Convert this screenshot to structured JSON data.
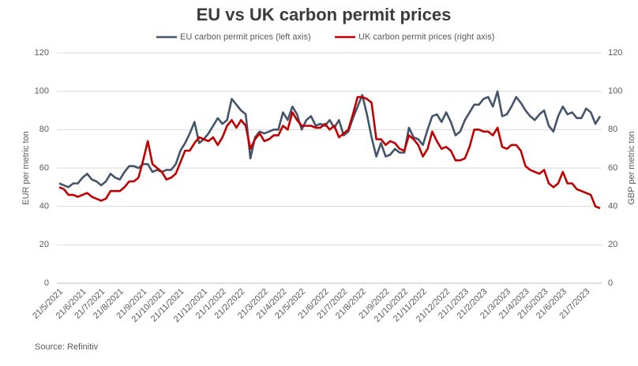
{
  "chart_data": {
    "type": "line",
    "title": "EU vs UK carbon permit prices",
    "source": "Source: Refinitiv",
    "ylabel": "EUR per metric ton",
    "y2label": "GBP per metric ton",
    "ylim": [
      0,
      120
    ],
    "yticks": [
      0,
      20,
      40,
      60,
      80,
      100,
      120
    ],
    "y2lim": [
      0,
      120
    ],
    "y2ticks": [
      0,
      20,
      40,
      60,
      80,
      100,
      120
    ],
    "grid": true,
    "legend": "top",
    "categories": [
      "21/5/2021",
      null,
      null,
      null,
      null,
      "21/6/2021",
      null,
      null,
      null,
      "21/7/2021",
      null,
      null,
      null,
      "21/8/2021",
      null,
      null,
      null,
      null,
      "21/9/2021",
      null,
      null,
      null,
      "21/10/2021",
      null,
      null,
      null,
      "21/11/2021",
      null,
      null,
      null,
      null,
      "21/12/2021",
      null,
      null,
      null,
      "21/1/2022",
      null,
      null,
      null,
      "21/2/2022",
      null,
      null,
      null,
      null,
      "21/3/2022",
      null,
      null,
      null,
      "21/4/2022",
      null,
      null,
      null,
      "21/5/2022",
      null,
      null,
      null,
      null,
      "21/6/2022",
      null,
      null,
      null,
      "21/7/2022",
      null,
      null,
      null,
      "21/8/2022",
      null,
      null,
      null,
      null,
      "21/9/2022",
      null,
      null,
      null,
      "21/10/2022",
      null,
      null,
      null,
      "21/11/2022",
      null,
      null,
      null,
      null,
      "21/12/2022",
      null,
      null,
      null,
      "21/1/2023",
      null,
      null,
      null,
      "21/2/2023",
      null,
      null,
      null,
      null,
      "21/3/2023",
      null,
      null,
      null,
      "21/4/2023",
      null,
      null,
      null,
      "21/5/2023",
      null,
      null,
      null,
      "21/6/2023",
      null,
      null,
      null,
      null,
      "21/7/2023",
      null,
      null,
      null
    ],
    "series": [
      {
        "name": "EU carbon permit prices (left axis)",
        "color": "#44546a",
        "axis": "y",
        "values": [
          52,
          51,
          50,
          52,
          52,
          55,
          57,
          54,
          53,
          51,
          53,
          57,
          55,
          54,
          58,
          61,
          61,
          60,
          62,
          62,
          58,
          59,
          58,
          59,
          59,
          62,
          69,
          73,
          78,
          84,
          73,
          75,
          78,
          82,
          86,
          83,
          85,
          96,
          93,
          90,
          88,
          65,
          76,
          79,
          78,
          79,
          80,
          80,
          89,
          85,
          92,
          88,
          80,
          85,
          87,
          82,
          83,
          82,
          85,
          81,
          85,
          77,
          79,
          86,
          92,
          98,
          88,
          76,
          66,
          73,
          66,
          67,
          70,
          68,
          68,
          81,
          76,
          75,
          72,
          80,
          87,
          88,
          84,
          89,
          84,
          77,
          79,
          85,
          89,
          93,
          93,
          96,
          97,
          92,
          100,
          87,
          88,
          92,
          97,
          94,
          90,
          87,
          85,
          88,
          90,
          82,
          79,
          87,
          92,
          88,
          89,
          86,
          86,
          91,
          89,
          83,
          87
        ]
      },
      {
        "name": "UK carbon permit prices (right axis)",
        "color": "#c00000",
        "axis": "y2",
        "values": [
          50,
          49,
          46,
          46,
          45,
          46,
          47,
          45,
          44,
          43,
          44,
          48,
          48,
          48,
          50,
          53,
          53,
          55,
          64,
          74,
          62,
          60,
          58,
          54,
          55,
          57,
          63,
          69,
          69,
          73,
          76,
          75,
          74,
          76,
          72,
          76,
          82,
          85,
          81,
          85,
          82,
          70,
          75,
          78,
          74,
          75,
          77,
          77,
          82,
          80,
          89,
          85,
          82,
          82,
          82,
          81,
          81,
          83,
          80,
          82,
          76,
          78,
          80,
          88,
          97,
          97,
          96,
          94,
          75,
          75,
          72,
          74,
          73,
          70,
          69,
          77,
          75,
          72,
          66,
          70,
          79,
          74,
          70,
          71,
          69,
          64,
          64,
          65,
          71,
          80,
          80,
          79,
          79,
          77,
          81,
          71,
          70,
          72,
          72,
          69,
          61,
          59,
          58,
          57,
          59,
          52,
          50,
          52,
          58,
          52,
          52,
          49,
          48,
          47,
          46,
          40,
          39
        ]
      }
    ]
  }
}
